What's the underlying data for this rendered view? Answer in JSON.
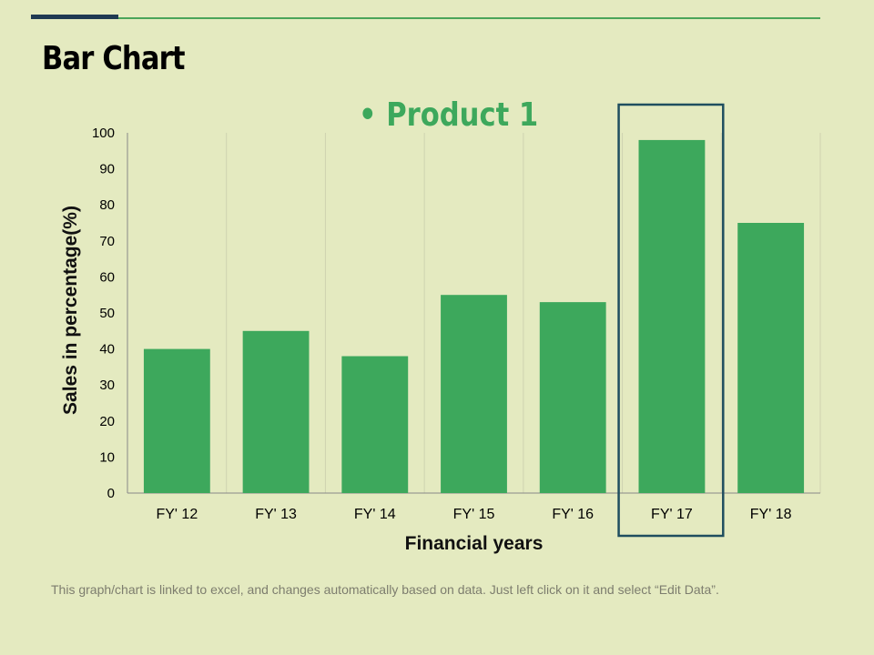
{
  "slide": {
    "title": "Bar Chart",
    "note": "This graph/chart is linked to excel, and changes automatically  based on data. Just left click on it and select “Edit Data”.",
    "accent_colors": {
      "dark": "#1f3a52",
      "green": "#4aa55a"
    }
  },
  "chart_data": {
    "type": "bar",
    "categories": [
      "FY' 12",
      "FY' 13",
      "FY' 14",
      "FY' 15",
      "FY' 16",
      "FY' 17",
      "FY' 18"
    ],
    "series": [
      {
        "name": "Product 1",
        "values": [
          40,
          45,
          38,
          55,
          53,
          98,
          75
        ],
        "color": "#3da85c"
      }
    ],
    "legend_label": "• Product 1",
    "legend_position": "top",
    "xlabel": "Financial years",
    "ylabel": "Sales in percentage(%)",
    "ylim": [
      0,
      100
    ],
    "yticks": [
      0,
      10,
      20,
      30,
      40,
      50,
      60,
      70,
      80,
      90,
      100
    ],
    "grid": "vertical category separators",
    "highlight_category": "FY' 17",
    "highlight_color": "#1f4e5f"
  }
}
